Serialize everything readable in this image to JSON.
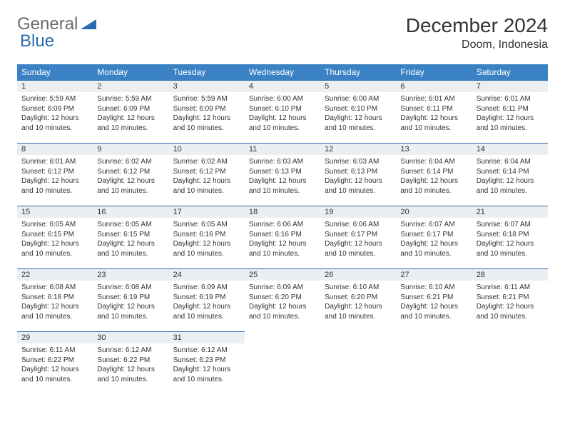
{
  "logo": {
    "text1": "General",
    "text2": "Blue"
  },
  "title": "December 2024",
  "location": "Doom, Indonesia",
  "colors": {
    "header_bg": "#3b82c4",
    "header_text": "#ffffff",
    "daynum_bg": "#ebeff2",
    "daynum_border": "#2b6cb0",
    "page_bg": "#ffffff",
    "text": "#333333",
    "logo_gray": "#6b6b6b",
    "logo_blue": "#2b6cb0"
  },
  "layout": {
    "columns": 7,
    "rows": 5,
    "font_family": "Arial",
    "daynum_fontsize": 11,
    "info_fontsize": 10,
    "header_fontsize": 12,
    "title_fontsize": 28,
    "location_fontsize": 16
  },
  "weekdays": [
    "Sunday",
    "Monday",
    "Tuesday",
    "Wednesday",
    "Thursday",
    "Friday",
    "Saturday"
  ],
  "days": [
    {
      "n": 1,
      "sr": "5:59 AM",
      "ss": "6:09 PM",
      "dl": "12 hours and 10 minutes."
    },
    {
      "n": 2,
      "sr": "5:59 AM",
      "ss": "6:09 PM",
      "dl": "12 hours and 10 minutes."
    },
    {
      "n": 3,
      "sr": "5:59 AM",
      "ss": "6:09 PM",
      "dl": "12 hours and 10 minutes."
    },
    {
      "n": 4,
      "sr": "6:00 AM",
      "ss": "6:10 PM",
      "dl": "12 hours and 10 minutes."
    },
    {
      "n": 5,
      "sr": "6:00 AM",
      "ss": "6:10 PM",
      "dl": "12 hours and 10 minutes."
    },
    {
      "n": 6,
      "sr": "6:01 AM",
      "ss": "6:11 PM",
      "dl": "12 hours and 10 minutes."
    },
    {
      "n": 7,
      "sr": "6:01 AM",
      "ss": "6:11 PM",
      "dl": "12 hours and 10 minutes."
    },
    {
      "n": 8,
      "sr": "6:01 AM",
      "ss": "6:12 PM",
      "dl": "12 hours and 10 minutes."
    },
    {
      "n": 9,
      "sr": "6:02 AM",
      "ss": "6:12 PM",
      "dl": "12 hours and 10 minutes."
    },
    {
      "n": 10,
      "sr": "6:02 AM",
      "ss": "6:12 PM",
      "dl": "12 hours and 10 minutes."
    },
    {
      "n": 11,
      "sr": "6:03 AM",
      "ss": "6:13 PM",
      "dl": "12 hours and 10 minutes."
    },
    {
      "n": 12,
      "sr": "6:03 AM",
      "ss": "6:13 PM",
      "dl": "12 hours and 10 minutes."
    },
    {
      "n": 13,
      "sr": "6:04 AM",
      "ss": "6:14 PM",
      "dl": "12 hours and 10 minutes."
    },
    {
      "n": 14,
      "sr": "6:04 AM",
      "ss": "6:14 PM",
      "dl": "12 hours and 10 minutes."
    },
    {
      "n": 15,
      "sr": "6:05 AM",
      "ss": "6:15 PM",
      "dl": "12 hours and 10 minutes."
    },
    {
      "n": 16,
      "sr": "6:05 AM",
      "ss": "6:15 PM",
      "dl": "12 hours and 10 minutes."
    },
    {
      "n": 17,
      "sr": "6:05 AM",
      "ss": "6:16 PM",
      "dl": "12 hours and 10 minutes."
    },
    {
      "n": 18,
      "sr": "6:06 AM",
      "ss": "6:16 PM",
      "dl": "12 hours and 10 minutes."
    },
    {
      "n": 19,
      "sr": "6:06 AM",
      "ss": "6:17 PM",
      "dl": "12 hours and 10 minutes."
    },
    {
      "n": 20,
      "sr": "6:07 AM",
      "ss": "6:17 PM",
      "dl": "12 hours and 10 minutes."
    },
    {
      "n": 21,
      "sr": "6:07 AM",
      "ss": "6:18 PM",
      "dl": "12 hours and 10 minutes."
    },
    {
      "n": 22,
      "sr": "6:08 AM",
      "ss": "6:18 PM",
      "dl": "12 hours and 10 minutes."
    },
    {
      "n": 23,
      "sr": "6:08 AM",
      "ss": "6:19 PM",
      "dl": "12 hours and 10 minutes."
    },
    {
      "n": 24,
      "sr": "6:09 AM",
      "ss": "6:19 PM",
      "dl": "12 hours and 10 minutes."
    },
    {
      "n": 25,
      "sr": "6:09 AM",
      "ss": "6:20 PM",
      "dl": "12 hours and 10 minutes."
    },
    {
      "n": 26,
      "sr": "6:10 AM",
      "ss": "6:20 PM",
      "dl": "12 hours and 10 minutes."
    },
    {
      "n": 27,
      "sr": "6:10 AM",
      "ss": "6:21 PM",
      "dl": "12 hours and 10 minutes."
    },
    {
      "n": 28,
      "sr": "6:11 AM",
      "ss": "6:21 PM",
      "dl": "12 hours and 10 minutes."
    },
    {
      "n": 29,
      "sr": "6:11 AM",
      "ss": "6:22 PM",
      "dl": "12 hours and 10 minutes."
    },
    {
      "n": 30,
      "sr": "6:12 AM",
      "ss": "6:22 PM",
      "dl": "12 hours and 10 minutes."
    },
    {
      "n": 31,
      "sr": "6:12 AM",
      "ss": "6:23 PM",
      "dl": "12 hours and 10 minutes."
    }
  ],
  "labels": {
    "sunrise": "Sunrise:",
    "sunset": "Sunset:",
    "daylight": "Daylight:"
  }
}
